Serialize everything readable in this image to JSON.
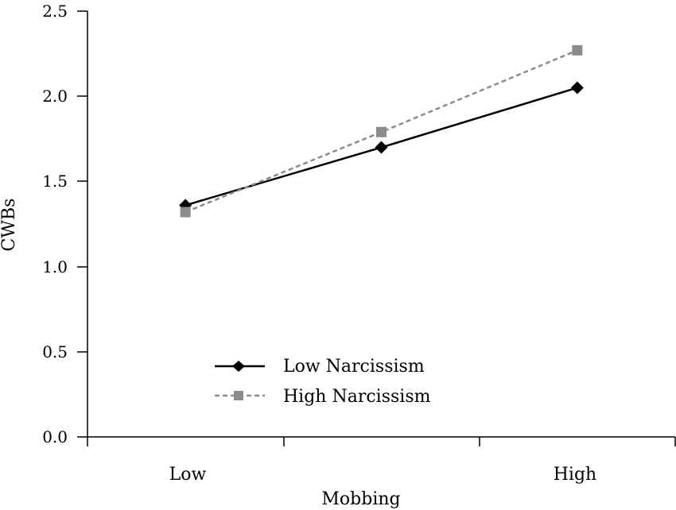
{
  "chart_data": {
    "type": "line",
    "categories": [
      "Low",
      "",
      "High"
    ],
    "x_tick_labels": [
      "Low",
      "High"
    ],
    "xlabel": "Mobbing",
    "ylabel": "CWBs",
    "ylim": [
      0,
      2.5
    ],
    "y_ticks": [
      "0.0",
      "0.5",
      "1.0",
      "1.5",
      "2.0",
      "2.5"
    ],
    "grid": false,
    "legend_position": "bottom-left",
    "series": [
      {
        "name": "Low Narcissism",
        "values": [
          1.36,
          1.7,
          2.05
        ],
        "color": "#000000",
        "marker": "diamond",
        "dash": "solid"
      },
      {
        "name": "High Narcissism",
        "values": [
          1.32,
          1.79,
          2.27
        ],
        "color": "#8c8c8c",
        "marker": "square",
        "dash": "dashed"
      }
    ]
  }
}
